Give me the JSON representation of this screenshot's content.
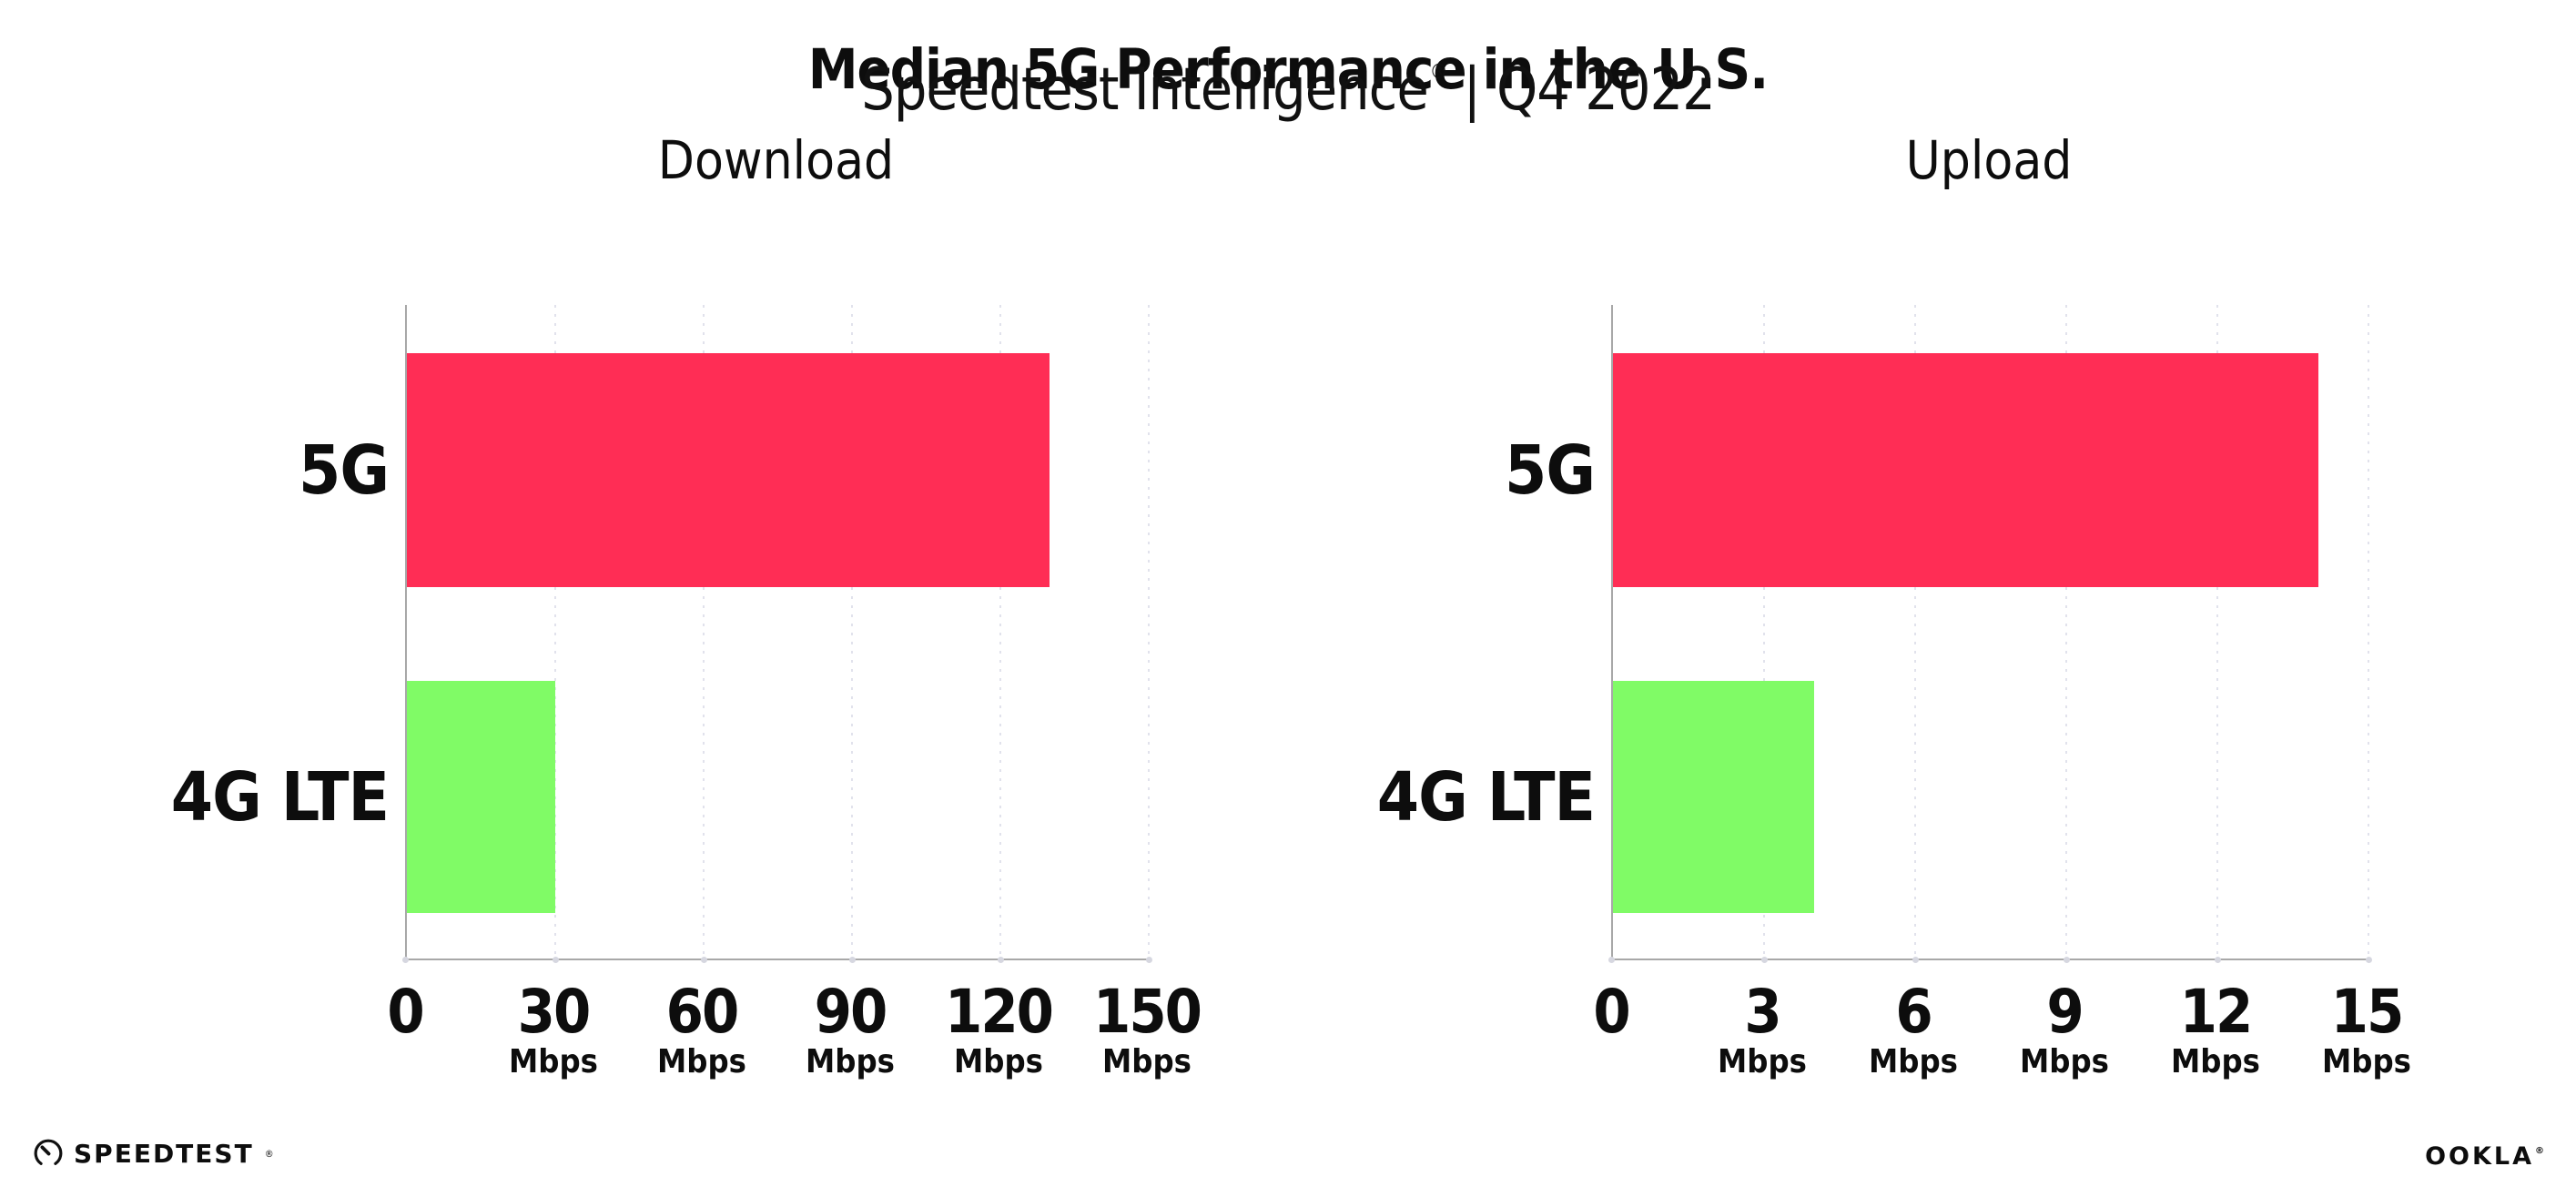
{
  "title": "Median 5G Performance in the U.S.",
  "subtitle": {
    "brand": "Speedtest Intelligence",
    "registered_mark": "®",
    "separator": "|",
    "period": "Q4 2022"
  },
  "colors": {
    "bar_5g": "#ff2d55",
    "bar_4g_lte": "#80fb66",
    "axis": "#a8a8a8",
    "gridline": "#e1e2ec",
    "text": "#0d0d0d",
    "background": "#ffffff"
  },
  "chart_data": [
    {
      "type": "bar",
      "orientation": "horizontal",
      "title": "Download",
      "categories": [
        "5G",
        "4G LTE"
      ],
      "values": [
        130,
        30
      ],
      "value_unit": "Mbps",
      "xlim": [
        0,
        150
      ],
      "xticks": [
        0,
        30,
        60,
        90,
        120,
        150
      ],
      "xtick_unit": "Mbps",
      "grid": "vertical-dotted",
      "legend": "none",
      "bar_colors": [
        "#ff2d55",
        "#80fb66"
      ]
    },
    {
      "type": "bar",
      "orientation": "horizontal",
      "title": "Upload",
      "categories": [
        "5G",
        "4G LTE"
      ],
      "values": [
        14,
        4
      ],
      "value_unit": "Mbps",
      "xlim": [
        0,
        15
      ],
      "xticks": [
        0,
        3,
        6,
        9,
        12,
        15
      ],
      "xtick_unit": "Mbps",
      "grid": "vertical-dotted",
      "legend": "none",
      "bar_colors": [
        "#ff2d55",
        "#80fb66"
      ]
    }
  ],
  "footer": {
    "speedtest_logo_text": "SPEEDTEST",
    "speedtest_mark": "®",
    "ookla_logo_text": "OOKLA",
    "ookla_mark": "®"
  }
}
